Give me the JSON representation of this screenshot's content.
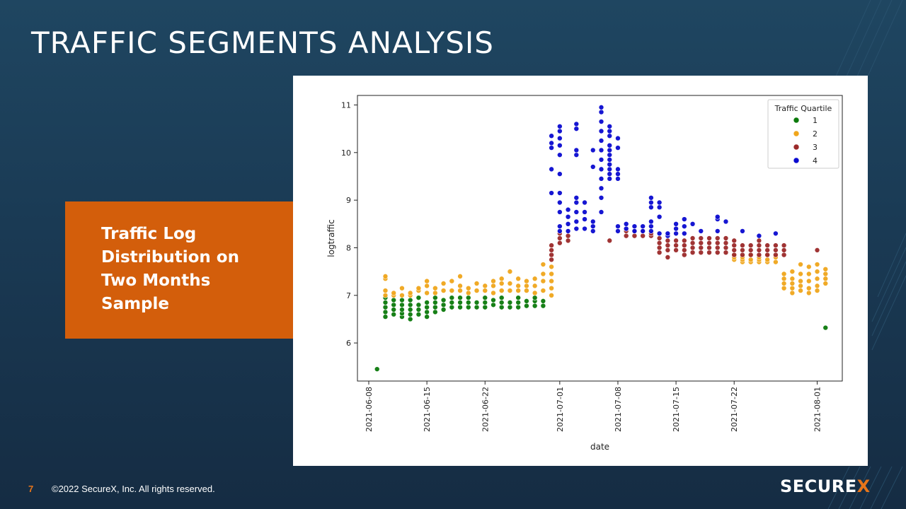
{
  "slide": {
    "title": "TRAFFIC SEGMENTS ANALYSIS",
    "callout": "Traffic Log Distribution on Two Months Sample",
    "page_number": "7",
    "copyright": "©2022 SecureX, Inc. All rights reserved.",
    "logo": "SECUREX",
    "accent_color": "#d35e0b",
    "background_color": "#1a3a54"
  },
  "chart_data": {
    "type": "scatter",
    "xlabel": "date",
    "ylabel": "logtraffic",
    "x_ticks": [
      "2021-06-08",
      "2021-06-15",
      "2021-06-22",
      "2021-07-01",
      "2021-07-08",
      "2021-07-15",
      "2021-07-22",
      "2021-08-01"
    ],
    "y_ticks": [
      6,
      7,
      8,
      9,
      10,
      11
    ],
    "xlim": [
      "2021-06-08",
      "2021-08-03"
    ],
    "ylim": [
      5.2,
      11.2
    ],
    "legend": {
      "title": "Traffic Quartile",
      "position": "top-right"
    },
    "series": [
      {
        "name": "1",
        "color": "#0b7a0b",
        "points": [
          {
            "date": "2021-06-09",
            "values": [
              5.45
            ]
          },
          {
            "date": "2021-06-10",
            "values": [
              6.55,
              6.65,
              6.75,
              6.85,
              6.95
            ]
          },
          {
            "date": "2021-06-11",
            "values": [
              6.6,
              6.7,
              6.8,
              6.9
            ]
          },
          {
            "date": "2021-06-12",
            "values": [
              6.55,
              6.62,
              6.7,
              6.8,
              6.9
            ]
          },
          {
            "date": "2021-06-13",
            "values": [
              6.5,
              6.6,
              6.7,
              6.8,
              6.9
            ]
          },
          {
            "date": "2021-06-14",
            "values": [
              6.6,
              6.7,
              6.8,
              6.95
            ]
          },
          {
            "date": "2021-06-15",
            "values": [
              6.55,
              6.65,
              6.75,
              6.85
            ]
          },
          {
            "date": "2021-06-16",
            "values": [
              6.65,
              6.75,
              6.85,
              6.95
            ]
          },
          {
            "date": "2021-06-17",
            "values": [
              6.7,
              6.8,
              6.9
            ]
          },
          {
            "date": "2021-06-18",
            "values": [
              6.75,
              6.85,
              6.95
            ]
          },
          {
            "date": "2021-06-19",
            "values": [
              6.75,
              6.85,
              6.95
            ]
          },
          {
            "date": "2021-06-20",
            "values": [
              6.75,
              6.85,
              6.95
            ]
          },
          {
            "date": "2021-06-21",
            "values": [
              6.75,
              6.85
            ]
          },
          {
            "date": "2021-06-22",
            "values": [
              6.75,
              6.85,
              6.95
            ]
          },
          {
            "date": "2021-06-23",
            "values": [
              6.8,
              6.9
            ]
          },
          {
            "date": "2021-06-24",
            "values": [
              6.75,
              6.85,
              6.95
            ]
          },
          {
            "date": "2021-06-25",
            "values": [
              6.75,
              6.85
            ]
          },
          {
            "date": "2021-06-26",
            "values": [
              6.75,
              6.85,
              6.95
            ]
          },
          {
            "date": "2021-06-27",
            "values": [
              6.78,
              6.88
            ]
          },
          {
            "date": "2021-06-28",
            "values": [
              6.78,
              6.88,
              6.95
            ]
          },
          {
            "date": "2021-06-29",
            "values": [
              6.78,
              6.88
            ]
          },
          {
            "date": "2021-08-02",
            "values": [
              6.32
            ]
          }
        ]
      },
      {
        "name": "2",
        "color": "#f0a61c",
        "points": [
          {
            "date": "2021-06-10",
            "values": [
              7.0,
              7.1,
              7.35,
              7.4
            ]
          },
          {
            "date": "2021-06-11",
            "values": [
              7.0,
              7.05
            ]
          },
          {
            "date": "2021-06-12",
            "values": [
              7.0,
              7.15
            ]
          },
          {
            "date": "2021-06-13",
            "values": [
              7.0,
              7.05
            ]
          },
          {
            "date": "2021-06-14",
            "values": [
              7.1,
              7.15
            ]
          },
          {
            "date": "2021-06-15",
            "values": [
              7.05,
              7.2,
              7.3
            ]
          },
          {
            "date": "2021-06-16",
            "values": [
              7.05,
              7.15
            ]
          },
          {
            "date": "2021-06-17",
            "values": [
              7.1,
              7.25
            ]
          },
          {
            "date": "2021-06-18",
            "values": [
              7.1,
              7.3
            ]
          },
          {
            "date": "2021-06-19",
            "values": [
              7.1,
              7.2,
              7.4
            ]
          },
          {
            "date": "2021-06-20",
            "values": [
              7.05,
              7.15
            ]
          },
          {
            "date": "2021-06-21",
            "values": [
              7.1,
              7.25
            ]
          },
          {
            "date": "2021-06-22",
            "values": [
              7.1,
              7.2
            ]
          },
          {
            "date": "2021-06-23",
            "values": [
              7.05,
              7.2,
              7.3
            ]
          },
          {
            "date": "2021-06-24",
            "values": [
              7.1,
              7.25,
              7.35
            ]
          },
          {
            "date": "2021-06-25",
            "values": [
              7.1,
              7.25,
              7.5
            ]
          },
          {
            "date": "2021-06-26",
            "values": [
              7.1,
              7.2,
              7.35
            ]
          },
          {
            "date": "2021-06-27",
            "values": [
              7.1,
              7.2,
              7.3
            ]
          },
          {
            "date": "2021-06-28",
            "values": [
              7.05,
              7.2,
              7.35
            ]
          },
          {
            "date": "2021-06-29",
            "values": [
              7.1,
              7.3,
              7.45,
              7.65
            ]
          },
          {
            "date": "2021-06-30",
            "values": [
              7.0,
              7.15,
              7.3,
              7.45,
              7.6
            ]
          },
          {
            "date": "2021-07-22",
            "values": [
              7.75,
              7.8,
              7.85
            ]
          },
          {
            "date": "2021-07-23",
            "values": [
              7.7,
              7.75,
              7.8
            ]
          },
          {
            "date": "2021-07-24",
            "values": [
              7.7,
              7.75,
              7.85
            ]
          },
          {
            "date": "2021-07-25",
            "values": [
              7.7,
              7.75,
              7.8
            ]
          },
          {
            "date": "2021-07-26",
            "values": [
              7.7,
              7.75,
              7.85
            ]
          },
          {
            "date": "2021-07-27",
            "values": [
              7.7,
              7.8
            ]
          },
          {
            "date": "2021-07-28",
            "values": [
              7.15,
              7.25,
              7.35,
              7.45
            ]
          },
          {
            "date": "2021-07-29",
            "values": [
              7.05,
              7.15,
              7.25,
              7.35,
              7.5
            ]
          },
          {
            "date": "2021-07-30",
            "values": [
              7.1,
              7.2,
              7.3,
              7.45,
              7.65
            ]
          },
          {
            "date": "2021-07-31",
            "values": [
              7.05,
              7.15,
              7.3,
              7.45,
              7.6
            ]
          },
          {
            "date": "2021-08-01",
            "values": [
              7.1,
              7.2,
              7.35,
              7.5,
              7.65
            ]
          },
          {
            "date": "2021-08-02",
            "values": [
              7.25,
              7.35,
              7.45,
              7.55
            ]
          }
        ]
      },
      {
        "name": "3",
        "color": "#9b2a2a",
        "points": [
          {
            "date": "2021-06-30",
            "values": [
              7.75,
              7.85,
              7.95,
              8.05
            ]
          },
          {
            "date": "2021-07-01",
            "values": [
              8.1,
              8.2,
              8.3
            ]
          },
          {
            "date": "2021-07-02",
            "values": [
              8.15,
              8.25
            ]
          },
          {
            "date": "2021-07-07",
            "values": [
              8.15
            ]
          },
          {
            "date": "2021-07-09",
            "values": [
              8.25,
              8.35
            ]
          },
          {
            "date": "2021-07-10",
            "values": [
              8.25,
              8.35
            ]
          },
          {
            "date": "2021-07-11",
            "values": [
              8.25,
              8.35
            ]
          },
          {
            "date": "2021-07-12",
            "values": [
              8.25,
              8.3
            ]
          },
          {
            "date": "2021-07-13",
            "values": [
              7.9,
              8.0,
              8.1,
              8.2
            ]
          },
          {
            "date": "2021-07-14",
            "values": [
              7.8,
              7.95,
              8.05,
              8.15
            ]
          },
          {
            "date": "2021-07-15",
            "values": [
              7.95,
              8.05,
              8.15
            ]
          },
          {
            "date": "2021-07-16",
            "values": [
              7.85,
              7.95,
              8.05,
              8.15
            ]
          },
          {
            "date": "2021-07-17",
            "values": [
              7.9,
              8.0,
              8.1,
              8.2
            ]
          },
          {
            "date": "2021-07-18",
            "values": [
              7.9,
              8.0,
              8.1,
              8.2
            ]
          },
          {
            "date": "2021-07-19",
            "values": [
              7.9,
              8.0,
              8.1,
              8.2
            ]
          },
          {
            "date": "2021-07-20",
            "values": [
              7.9,
              8.0,
              8.1,
              8.2
            ]
          },
          {
            "date": "2021-07-21",
            "values": [
              7.9,
              8.0,
              8.1,
              8.2
            ]
          },
          {
            "date": "2021-07-22",
            "values": [
              7.85,
              7.95,
              8.05,
              8.15
            ]
          },
          {
            "date": "2021-07-23",
            "values": [
              7.85,
              7.95,
              8.05
            ]
          },
          {
            "date": "2021-07-24",
            "values": [
              7.85,
              7.95,
              8.05
            ]
          },
          {
            "date": "2021-07-25",
            "values": [
              7.85,
              7.95,
              8.05,
              8.15
            ]
          },
          {
            "date": "2021-07-26",
            "values": [
              7.85,
              7.95,
              8.05
            ]
          },
          {
            "date": "2021-07-27",
            "values": [
              7.85,
              7.95,
              8.05
            ]
          },
          {
            "date": "2021-07-28",
            "values": [
              7.85,
              7.95,
              8.05
            ]
          },
          {
            "date": "2021-08-01",
            "values": [
              7.95
            ]
          }
        ]
      },
      {
        "name": "4",
        "color": "#0a0ad0",
        "points": [
          {
            "date": "2021-06-30",
            "values": [
              9.15,
              9.65,
              10.1,
              10.2,
              10.35
            ]
          },
          {
            "date": "2021-07-01",
            "values": [
              8.35,
              8.45,
              8.75,
              8.95,
              9.15,
              9.55,
              9.95,
              10.15,
              10.3,
              10.45,
              10.55
            ]
          },
          {
            "date": "2021-07-02",
            "values": [
              8.35,
              8.5,
              8.65,
              8.8
            ]
          },
          {
            "date": "2021-07-03",
            "values": [
              8.4,
              8.55,
              8.75,
              8.95,
              9.05,
              9.95,
              10.05,
              10.5,
              10.6
            ]
          },
          {
            "date": "2021-07-04",
            "values": [
              8.4,
              8.6,
              8.75,
              8.95
            ]
          },
          {
            "date": "2021-07-05",
            "values": [
              8.35,
              8.45,
              8.55,
              9.7,
              10.05
            ]
          },
          {
            "date": "2021-07-06",
            "values": [
              8.75,
              9.05,
              9.25,
              9.45,
              9.65,
              9.85,
              10.05,
              10.25,
              10.45,
              10.65,
              10.85,
              10.95
            ]
          },
          {
            "date": "2021-07-07",
            "values": [
              9.45,
              9.55,
              9.65,
              9.75,
              9.85,
              9.95,
              10.05,
              10.15,
              10.35,
              10.45,
              10.55
            ]
          },
          {
            "date": "2021-07-08",
            "values": [
              8.35,
              8.45,
              9.45,
              9.55,
              9.65,
              10.1,
              10.3
            ]
          },
          {
            "date": "2021-07-09",
            "values": [
              8.4,
              8.5
            ]
          },
          {
            "date": "2021-07-10",
            "values": [
              8.35,
              8.45
            ]
          },
          {
            "date": "2021-07-11",
            "values": [
              8.35,
              8.45
            ]
          },
          {
            "date": "2021-07-12",
            "values": [
              8.35,
              8.45,
              8.55,
              8.85,
              8.95,
              9.05
            ]
          },
          {
            "date": "2021-07-13",
            "values": [
              8.3,
              8.65,
              8.85,
              8.95
            ]
          },
          {
            "date": "2021-07-14",
            "values": [
              8.25,
              8.3
            ]
          },
          {
            "date": "2021-07-15",
            "values": [
              8.3,
              8.4,
              8.5
            ]
          },
          {
            "date": "2021-07-16",
            "values": [
              8.3,
              8.45,
              8.6
            ]
          },
          {
            "date": "2021-07-17",
            "values": [
              8.5
            ]
          },
          {
            "date": "2021-07-18",
            "values": [
              8.35
            ]
          },
          {
            "date": "2021-07-20",
            "values": [
              8.35,
              8.6,
              8.65
            ]
          },
          {
            "date": "2021-07-21",
            "values": [
              8.55
            ]
          },
          {
            "date": "2021-07-23",
            "values": [
              8.35
            ]
          },
          {
            "date": "2021-07-25",
            "values": [
              8.25
            ]
          },
          {
            "date": "2021-07-27",
            "values": [
              8.3
            ]
          }
        ]
      }
    ]
  }
}
